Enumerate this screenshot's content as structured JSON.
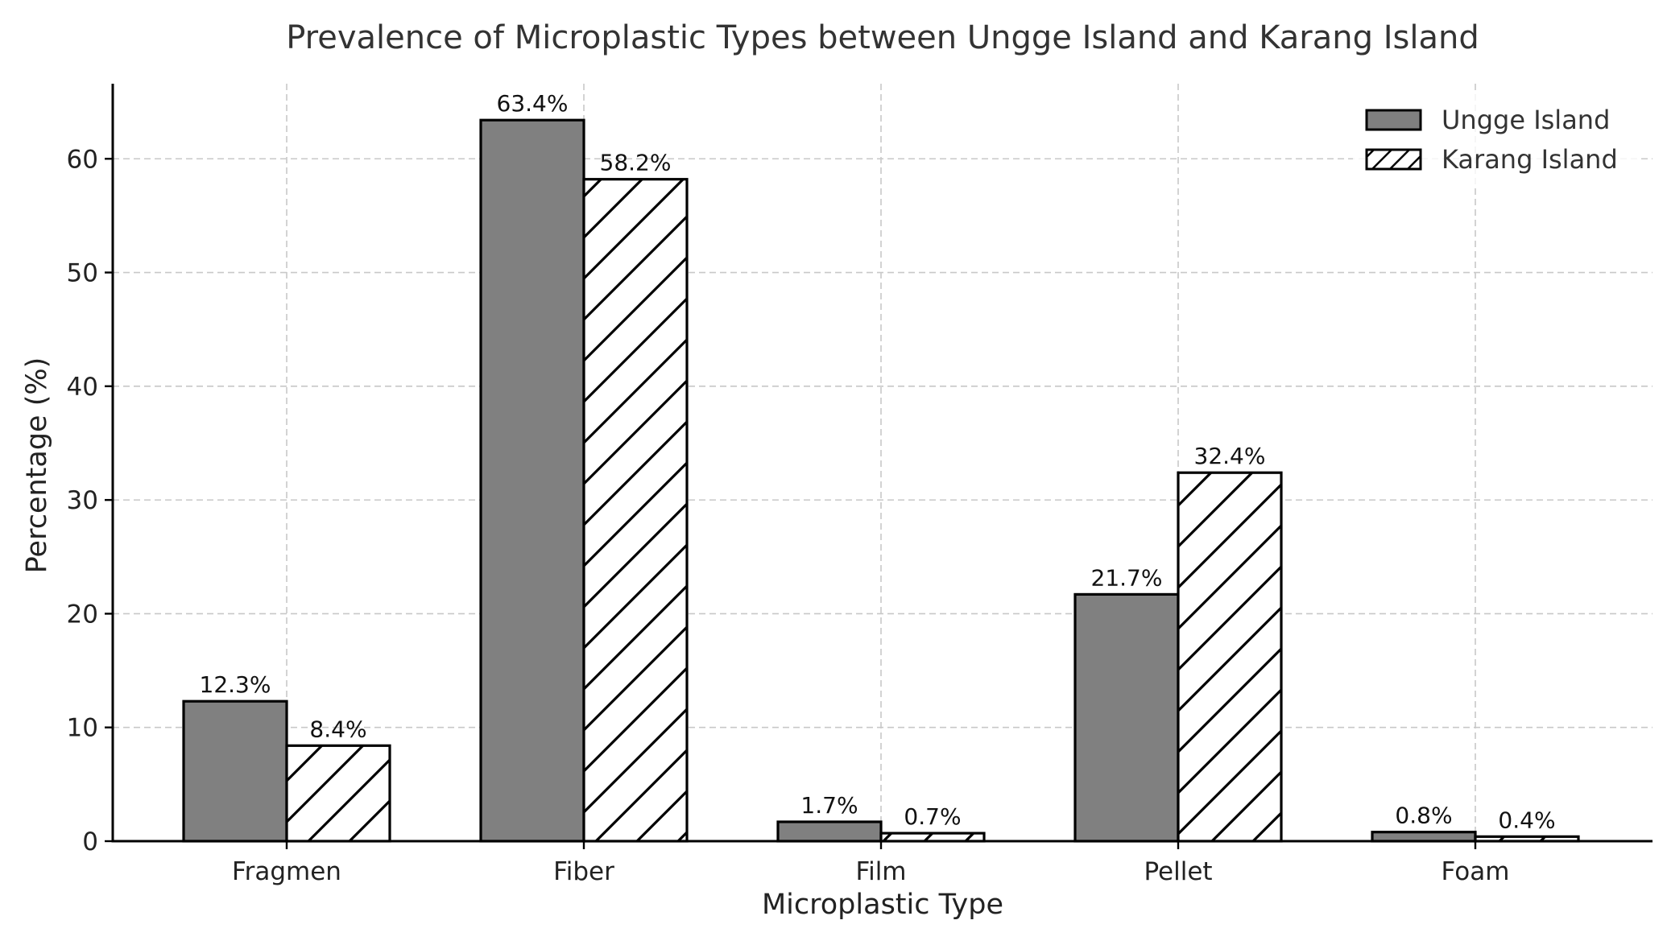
{
  "chart_data": {
    "type": "bar",
    "title": "Prevalence of Microplastic Types between Ungge Island and Karang Island",
    "xlabel": "Microplastic Type",
    "ylabel": "Percentage (%)",
    "categories": [
      "Fragmen",
      "Fiber",
      "Film",
      "Pellet",
      "Foam"
    ],
    "series": [
      {
        "name": "Ungge Island",
        "values": [
          12.3,
          63.4,
          1.7,
          21.7,
          0.8
        ],
        "labels": [
          "12.3%",
          "63.4%",
          "1.7%",
          "21.7%",
          "0.8%"
        ],
        "fill": "#808080",
        "hatch": "none"
      },
      {
        "name": "Karang Island",
        "values": [
          8.4,
          58.2,
          0.7,
          32.4,
          0.4
        ],
        "labels": [
          "8.4%",
          "58.2%",
          "0.7%",
          "32.4%",
          "0.4%"
        ],
        "fill": "#ffffff",
        "hatch": "diagonal"
      }
    ],
    "ylim": [
      0,
      66.6
    ],
    "yticks": [
      0,
      10,
      20,
      30,
      40,
      50,
      60
    ],
    "ytick_labels": [
      "0",
      "10",
      "20",
      "30",
      "40",
      "50",
      "60"
    ],
    "grid": true,
    "legend_position": "top-right",
    "colors": {
      "text": "#333333",
      "axis": "#000000",
      "grid": "#c8c8c8",
      "edge": "#000000"
    }
  }
}
